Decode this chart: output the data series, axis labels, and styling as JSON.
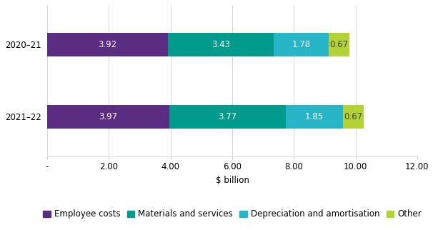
{
  "years": [
    "2020–21",
    "2021–22"
  ],
  "categories": [
    "Employee costs",
    "Materials and services",
    "Depreciation and amortisation",
    "Other"
  ],
  "values": [
    [
      3.92,
      3.43,
      1.78,
      0.67
    ],
    [
      3.97,
      3.77,
      1.85,
      0.67
    ]
  ],
  "colors": [
    "#5b2d82",
    "#009b8d",
    "#29b5c8",
    "#b2d235"
  ],
  "xlabel": "$ billion",
  "xlim": [
    0,
    12
  ],
  "xticks": [
    0,
    2,
    4,
    6,
    8,
    10,
    12
  ],
  "xticklabels": [
    "-",
    "2.00",
    "4.00",
    "6.00",
    "8.00",
    "10.00",
    "12.00"
  ],
  "bar_height": 0.32,
  "background_color": "#ffffff",
  "label_color_light": "#ffffff",
  "label_color_dark": "#444444",
  "label_fontsize": 8.5,
  "legend_fontsize": 8.5,
  "tick_fontsize": 8.5,
  "axis_label_fontsize": 8.5
}
